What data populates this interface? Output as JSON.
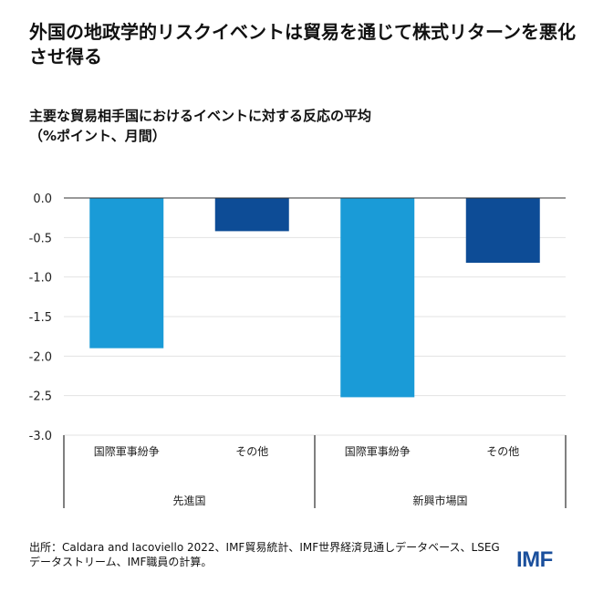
{
  "title": "外国の地政学的リスクイベントは貿易を通じて株式リターンを悪化させ得る",
  "subtitle_line1": "主要な貿易相手国におけるイベントに対する反応の平均",
  "subtitle_line2": "（%ポイント、月間）",
  "source": "出所：Caldara and Iacoviello 2022、IMF貿易統計、IMF世界経済見通しデータベース、LSEGデータストリーム、IMF職員の計算。",
  "logo": "IMF",
  "colors": {
    "conflict": "#1a9bd7",
    "other": "#0d4c96",
    "logo": "#1a4f9c"
  },
  "chart_data": {
    "type": "bar",
    "ylim": [
      -3.0,
      0.0
    ],
    "yticks": [
      "0.0",
      "-0.5",
      "-1.0",
      "-1.5",
      "-2.0",
      "-2.5",
      "-3.0"
    ],
    "ytick_values": [
      0,
      -0.5,
      -1.0,
      -1.5,
      -2.0,
      -2.5,
      -3.0
    ],
    "grid": true,
    "groups": [
      {
        "label": "先進国",
        "bars": [
          {
            "category": "国際軍事紛争",
            "value": -1.9,
            "color_key": "conflict"
          },
          {
            "category": "その他",
            "value": -0.42,
            "color_key": "other"
          }
        ]
      },
      {
        "label": "新興市場国",
        "bars": [
          {
            "category": "国際軍事紛争",
            "value": -2.52,
            "color_key": "conflict"
          },
          {
            "category": "その他",
            "value": -0.82,
            "color_key": "other"
          }
        ]
      }
    ]
  }
}
